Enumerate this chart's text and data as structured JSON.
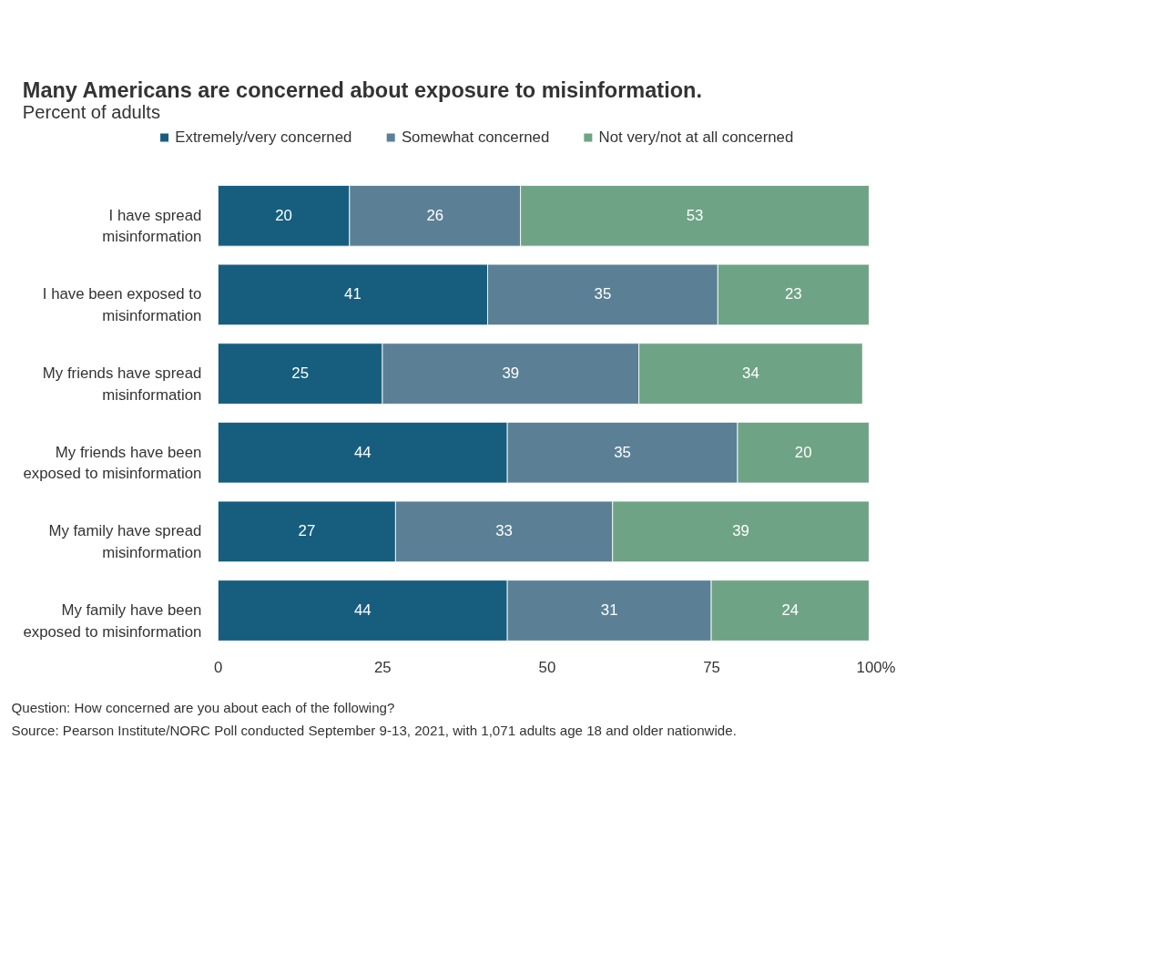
{
  "chart_data": {
    "type": "bar",
    "orientation": "horizontal",
    "stacked": true,
    "title": "Many Americans are concerned about exposure to misinformation.",
    "subtitle": "Percent of adults",
    "categories": [
      "I have spread misinformation",
      "I have been exposed to misinformation",
      "My friends have spread misinformation",
      "My friends have been exposed to misinformation",
      "My family have spread misinformation",
      "My family have been exposed to misinformation"
    ],
    "series": [
      {
        "name": "Extremely/very concerned",
        "color": "#175e7e",
        "values": [
          20,
          41,
          25,
          44,
          27,
          44
        ]
      },
      {
        "name": "Somewhat concerned",
        "color": "#5b8096",
        "values": [
          26,
          35,
          39,
          35,
          33,
          31
        ]
      },
      {
        "name": "Not very/not at all concerned",
        "color": "#6fa386",
        "values": [
          53,
          23,
          34,
          20,
          39,
          24
        ]
      }
    ],
    "xlim": [
      0,
      100
    ],
    "xticks": [
      0,
      25,
      50,
      75,
      {
        "value": 100,
        "label": "100%"
      }
    ],
    "data_labels": true,
    "grid": false,
    "legend": "top",
    "annotations": [
      "Question: How concerned are you about each of the following?",
      "Source: Pearson Institute/NORC Poll conducted September 9-13, 2021, with 1,071 adults age 18 and older nationwide."
    ]
  }
}
